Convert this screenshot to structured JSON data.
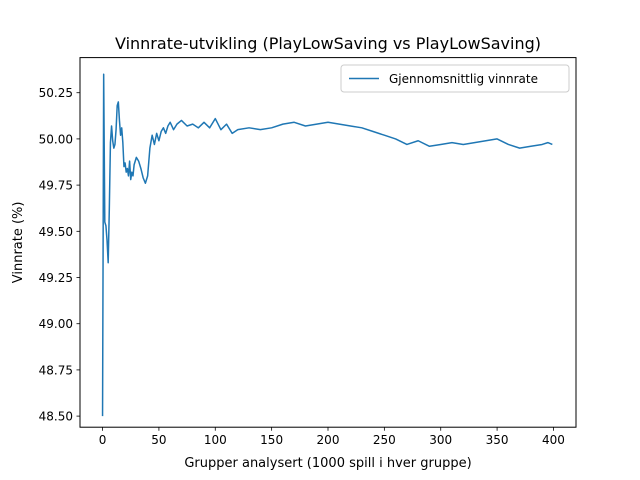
{
  "chart_data": {
    "type": "line",
    "title": "Vinnrate-utvikling (PlayLowSaving vs PlayLowSaving)",
    "xlabel": "Grupper analysert (1000 spill i hver gruppe)",
    "ylabel": "Vinnrate (%)",
    "xlim": [
      -20,
      420
    ],
    "ylim": [
      48.44,
      50.44
    ],
    "xticks": [
      0,
      50,
      100,
      150,
      200,
      250,
      300,
      350,
      400
    ],
    "yticks": [
      48.5,
      48.75,
      49.0,
      49.25,
      49.5,
      49.75,
      50.0,
      50.25
    ],
    "ytick_labels": [
      "48.50",
      "48.75",
      "49.00",
      "49.25",
      "49.50",
      "49.75",
      "50.00",
      "50.25"
    ],
    "xtick_labels": [
      "0",
      "50",
      "100",
      "150",
      "200",
      "250",
      "300",
      "350",
      "400"
    ],
    "legend": {
      "placement": "upper right"
    },
    "grid": false,
    "series": [
      {
        "name": "Gjennomsnittlig vinnrate",
        "color": "#1f77b4",
        "x": [
          0,
          1,
          2,
          3,
          4,
          5,
          6,
          7,
          8,
          9,
          10,
          11,
          12,
          13,
          14,
          15,
          16,
          17,
          18,
          19,
          20,
          21,
          22,
          23,
          24,
          25,
          26,
          27,
          28,
          30,
          32,
          34,
          36,
          38,
          40,
          42,
          44,
          46,
          48,
          50,
          52,
          54,
          56,
          58,
          60,
          63,
          66,
          70,
          75,
          80,
          85,
          90,
          95,
          100,
          105,
          110,
          115,
          120,
          130,
          140,
          150,
          160,
          170,
          180,
          190,
          200,
          210,
          220,
          230,
          240,
          250,
          260,
          270,
          280,
          290,
          300,
          310,
          320,
          330,
          340,
          350,
          360,
          370,
          380,
          390,
          395,
          399
        ],
        "y": [
          48.5,
          50.35,
          49.55,
          49.53,
          49.45,
          49.33,
          49.62,
          49.98,
          50.07,
          49.99,
          49.95,
          49.97,
          50.05,
          50.18,
          50.2,
          50.1,
          50.02,
          50.06,
          49.98,
          49.85,
          49.87,
          49.82,
          49.84,
          49.8,
          49.88,
          49.78,
          49.82,
          49.8,
          49.86,
          49.9,
          49.88,
          49.84,
          49.79,
          49.76,
          49.8,
          49.95,
          50.02,
          49.97,
          50.03,
          49.99,
          50.04,
          50.06,
          50.03,
          50.07,
          50.09,
          50.05,
          50.08,
          50.1,
          50.07,
          50.08,
          50.06,
          50.09,
          50.06,
          50.11,
          50.05,
          50.08,
          50.03,
          50.05,
          50.06,
          50.05,
          50.06,
          50.08,
          50.09,
          50.07,
          50.08,
          50.09,
          50.08,
          50.07,
          50.06,
          50.04,
          50.02,
          50.0,
          49.97,
          49.99,
          49.96,
          49.97,
          49.98,
          49.97,
          49.98,
          49.99,
          50.0,
          49.97,
          49.95,
          49.96,
          49.97,
          49.98,
          49.97
        ]
      }
    ]
  }
}
